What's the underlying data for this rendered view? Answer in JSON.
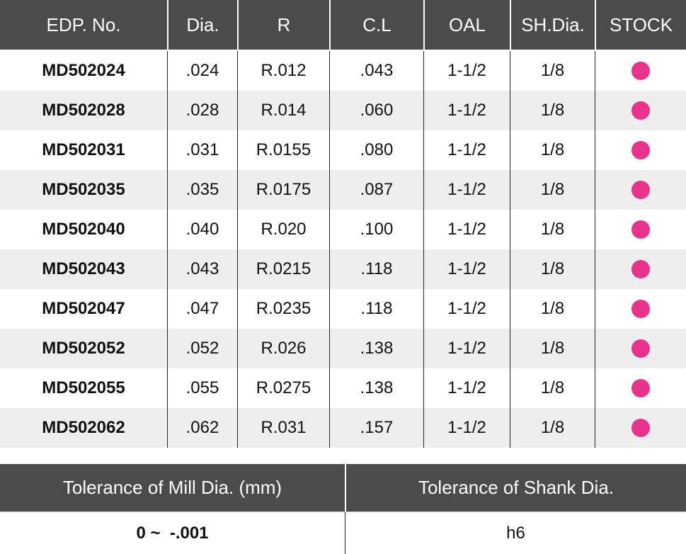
{
  "table": {
    "columns": [
      "EDP. No.",
      "Dia.",
      "R",
      "C.L",
      "OAL",
      "SH.Dia.",
      "STOCK"
    ],
    "rows": [
      [
        "MD502024",
        ".024",
        "R.012",
        ".043",
        "1-1/2",
        "1/8"
      ],
      [
        "MD502028",
        ".028",
        "R.014",
        ".060",
        "1-1/2",
        "1/8"
      ],
      [
        "MD502031",
        ".031",
        "R.0155",
        ".080",
        "1-1/2",
        "1/8"
      ],
      [
        "MD502035",
        ".035",
        "R.0175",
        ".087",
        "1-1/2",
        "1/8"
      ],
      [
        "MD502040",
        ".040",
        "R.020",
        ".100",
        "1-1/2",
        "1/8"
      ],
      [
        "MD502043",
        ".043",
        "R.0215",
        ".118",
        "1-1/2",
        "1/8"
      ],
      [
        "MD502047",
        ".047",
        "R.0235",
        ".118",
        "1-1/2",
        "1/8"
      ],
      [
        "MD502052",
        ".052",
        "R.026",
        ".138",
        "1-1/2",
        "1/8"
      ],
      [
        "MD502055",
        ".055",
        "R.0275",
        ".138",
        "1-1/2",
        "1/8"
      ],
      [
        "MD502062",
        ".062",
        "R.031",
        ".157",
        "1-1/2",
        "1/8"
      ]
    ]
  },
  "tolerance": {
    "headers": [
      "Tolerance of Mill Dia. (mm)",
      "Tolerance of Shank Dia."
    ],
    "row": [
      "0 ~  -.001",
      "h6"
    ]
  }
}
